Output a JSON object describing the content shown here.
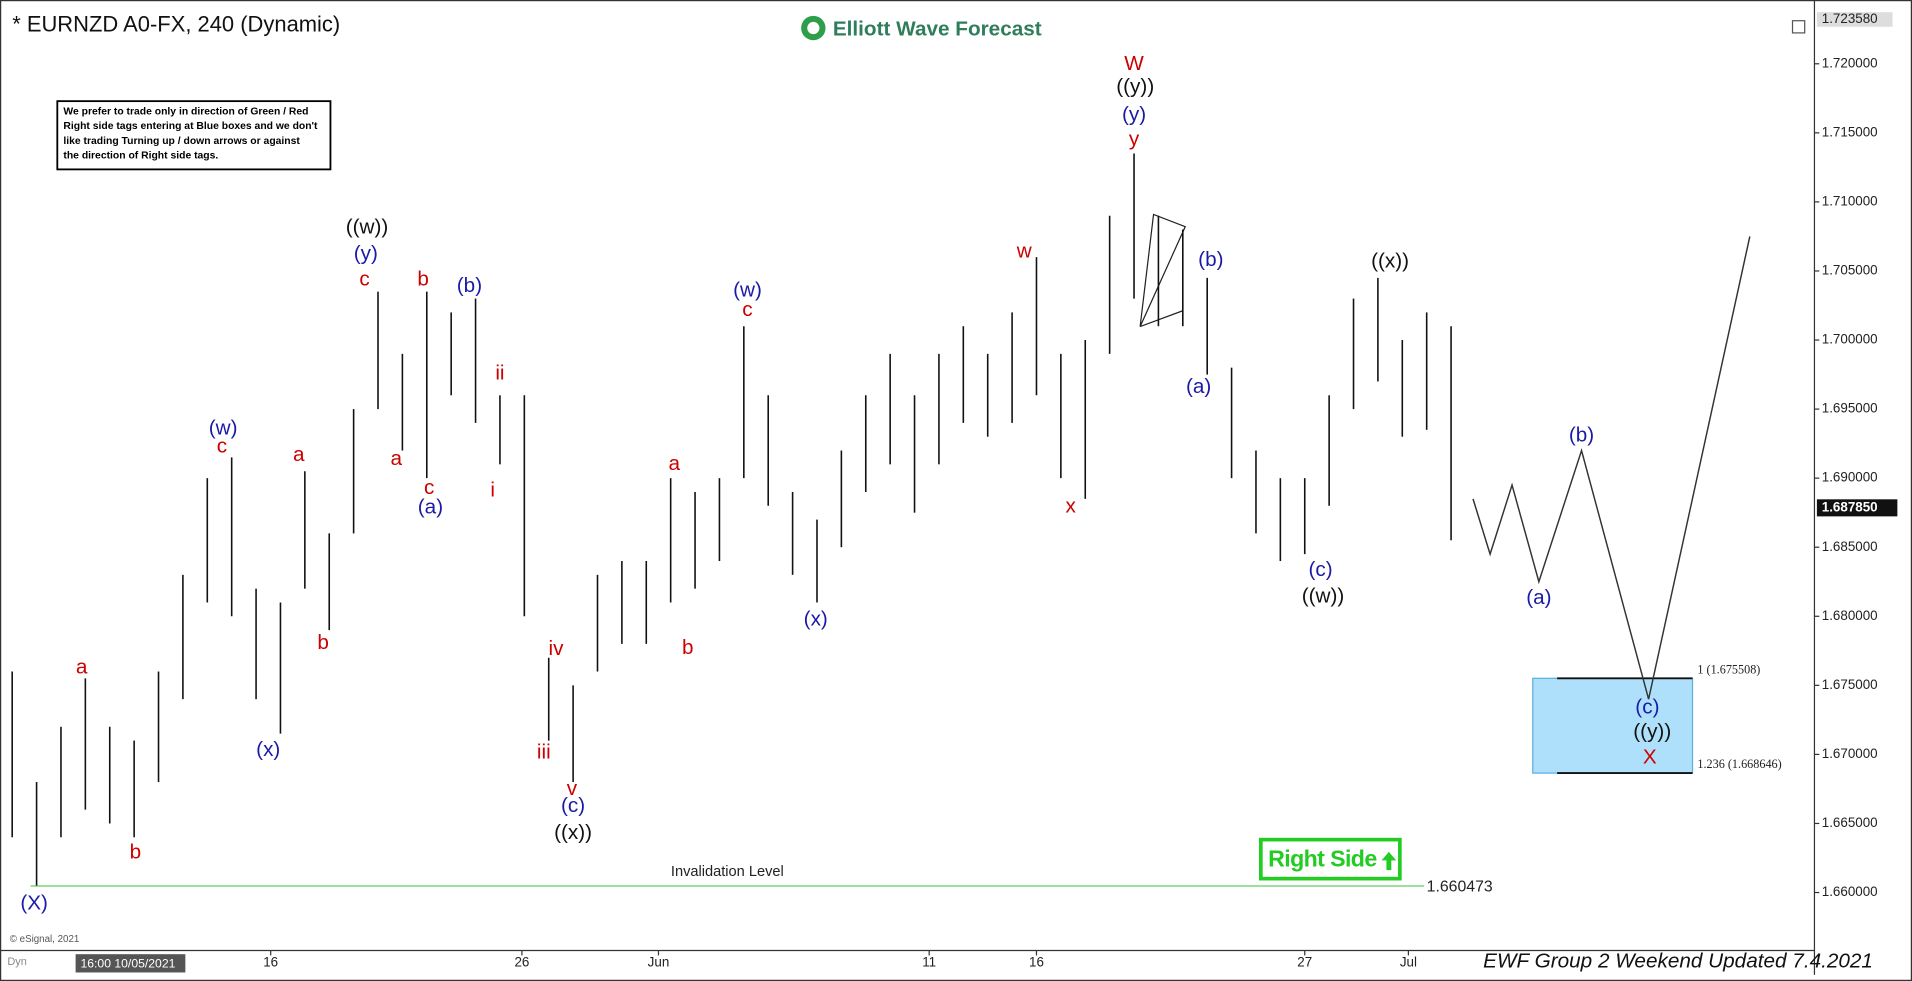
{
  "chart_data": {
    "type": "ohlc",
    "title": "* EURNZD A0-FX, 240 (Dynamic)",
    "logo": "Elliott Wave Forecast",
    "note": [
      "We prefer to trade only in direction of Green / Red",
      "Right side tags entering at Blue boxes and we don't",
      "like trading Turning up / down arrows or against",
      "the direction of Right side tags."
    ],
    "badge": "Right Side",
    "footer": "EWF Group 2 Weekend Updated 7.4.2021",
    "copyright": "© eSignal, 2021",
    "cursor_label": "16:00 10/05/2021",
    "corner_label": "Dyn",
    "color": "#111111",
    "x": [
      0,
      1,
      2,
      3,
      4,
      5,
      6,
      7,
      8,
      9,
      10,
      11,
      12,
      13,
      14,
      15,
      16,
      17,
      18,
      19,
      20,
      21,
      22,
      23,
      24,
      25,
      26,
      27,
      28,
      29,
      30,
      31,
      32,
      33,
      34,
      35,
      36,
      37,
      38,
      39,
      40,
      41,
      42,
      43,
      44,
      45,
      46,
      47,
      48,
      49,
      50,
      51,
      52,
      53,
      54,
      55,
      56,
      57,
      58,
      59
    ],
    "high": [
      1.676,
      1.668,
      1.672,
      1.6755,
      1.672,
      1.671,
      1.676,
      1.683,
      1.69,
      1.6915,
      1.682,
      1.681,
      1.6905,
      1.686,
      1.695,
      1.7035,
      1.699,
      1.7035,
      1.702,
      1.703,
      1.696,
      1.696,
      1.677,
      1.675,
      1.683,
      1.684,
      1.684,
      1.69,
      1.689,
      1.69,
      1.701,
      1.696,
      1.689,
      1.687,
      1.692,
      1.696,
      1.699,
      1.696,
      1.699,
      1.701,
      1.699,
      1.702,
      1.706,
      1.699,
      1.7,
      1.709,
      1.7135,
      1.709,
      1.708,
      1.7045,
      1.698,
      1.692,
      1.69,
      1.69,
      1.696,
      1.703,
      1.7045,
      1.7,
      1.702,
      1.701
    ],
    "low": [
      1.664,
      1.6605,
      1.664,
      1.666,
      1.665,
      1.664,
      1.668,
      1.674,
      1.681,
      1.68,
      1.674,
      1.6715,
      1.682,
      1.679,
      1.686,
      1.695,
      1.692,
      1.69,
      1.696,
      1.694,
      1.691,
      1.68,
      1.671,
      1.668,
      1.676,
      1.678,
      1.678,
      1.681,
      1.682,
      1.684,
      1.69,
      1.688,
      1.683,
      1.681,
      1.685,
      1.689,
      1.691,
      1.6875,
      1.691,
      1.694,
      1.693,
      1.694,
      1.696,
      1.69,
      1.6885,
      1.699,
      1.703,
      1.701,
      1.701,
      1.6975,
      1.69,
      1.686,
      1.684,
      1.6845,
      1.688,
      1.695,
      1.697,
      1.693,
      1.6935,
      1.6855
    ],
    "projection": {
      "x": [
        59.9,
        60.6,
        61.5,
        62.6,
        64.35,
        67.1,
        71.25
      ],
      "y": [
        1.6885,
        1.6845,
        1.6895,
        1.6825,
        1.692,
        1.674,
        1.7075
      ],
      "color": "#333333"
    },
    "zone": {
      "high": 1.675508,
      "low": 1.668646,
      "x_start": 62.35,
      "x_end": 68.9,
      "color": "#aee0fb",
      "labels": [
        "1 (1.675508)",
        "1.236 (1.668646)"
      ]
    },
    "invalidation": {
      "value": 1.660473,
      "text": "Invalidation Level",
      "x_start": 0.75,
      "x_end": 57.9,
      "color": "#7cd67c"
    },
    "last_price": {
      "value": 1.68785,
      "label": "1.687850"
    },
    "top_price": {
      "value": 1.72358,
      "label": "1.723580"
    },
    "xlim": [
      -0.5,
      73.9
    ],
    "ylim": [
      1.6558,
      1.724
    ],
    "xticks": [
      {
        "value": 10.6,
        "label": "16"
      },
      {
        "value": 20.9,
        "label": "26"
      },
      {
        "value": 26.5,
        "label": "Jun"
      },
      {
        "value": 37.6,
        "label": "11"
      },
      {
        "value": 42,
        "label": "16"
      },
      {
        "value": 53,
        "label": "27"
      },
      {
        "value": 57.25,
        "label": "Jul"
      }
    ],
    "yticks": [
      {
        "value": 1.66,
        "label": "1.660000"
      },
      {
        "value": 1.665,
        "label": "1.665000"
      },
      {
        "value": 1.67,
        "label": "1.670000"
      },
      {
        "value": 1.675,
        "label": "1.675000"
      },
      {
        "value": 1.68,
        "label": "1.680000"
      },
      {
        "value": 1.685,
        "label": "1.685000"
      },
      {
        "value": 1.69,
        "label": "1.690000"
      },
      {
        "value": 1.695,
        "label": "1.695000"
      },
      {
        "value": 1.7,
        "label": "1.700000"
      },
      {
        "value": 1.705,
        "label": "1.705000"
      },
      {
        "value": 1.71,
        "label": "1.710000"
      },
      {
        "value": 1.715,
        "label": "1.715000"
      },
      {
        "value": 1.72,
        "label": "1.720000"
      }
    ],
    "wave_labels": [
      {
        "text": "(X)",
        "color": "#1a1aa8"
      },
      {
        "text": "a",
        "color": "#cc0000"
      },
      {
        "text": "b",
        "color": "#cc0000"
      },
      {
        "text": "(w)",
        "color": "#1a1aa8"
      },
      {
        "text": "c",
        "color": "#cc0000"
      },
      {
        "text": "(x)",
        "color": "#1a1aa8"
      },
      {
        "text": "a",
        "color": "#cc0000"
      },
      {
        "text": "b",
        "color": "#cc0000"
      },
      {
        "text": "((w))",
        "color": "#111111"
      },
      {
        "text": "(y)",
        "color": "#1a1aa8"
      },
      {
        "text": "c",
        "color": "#cc0000"
      },
      {
        "text": "a",
        "color": "#cc0000"
      },
      {
        "text": "b",
        "color": "#cc0000"
      },
      {
        "text": "c",
        "color": "#cc0000"
      },
      {
        "text": "(a)",
        "color": "#1a1aa8"
      },
      {
        "text": "(b)",
        "color": "#1a1aa8"
      },
      {
        "text": "ii",
        "color": "#cc0000"
      },
      {
        "text": "i",
        "color": "#cc0000"
      },
      {
        "text": "iii",
        "color": "#cc0000"
      },
      {
        "text": "iv",
        "color": "#cc0000"
      },
      {
        "text": "v",
        "color": "#cc0000"
      },
      {
        "text": "(c)",
        "color": "#1a1aa8"
      },
      {
        "text": "((x))",
        "color": "#111111"
      },
      {
        "text": "a",
        "color": "#cc0000"
      },
      {
        "text": "b",
        "color": "#cc0000"
      },
      {
        "text": "(w)",
        "color": "#1a1aa8"
      },
      {
        "text": "c",
        "color": "#cc0000"
      },
      {
        "text": "(x)",
        "color": "#1a1aa8"
      },
      {
        "text": "w",
        "color": "#cc0000"
      },
      {
        "text": "x",
        "color": "#cc0000"
      },
      {
        "text": "W",
        "color": "#cc0000"
      },
      {
        "text": "((y))",
        "color": "#111111"
      },
      {
        "text": "(y)",
        "color": "#1a1aa8"
      },
      {
        "text": "y",
        "color": "#cc0000"
      },
      {
        "text": "(b)",
        "color": "#1a1aa8"
      },
      {
        "text": "(a)",
        "color": "#1a1aa8"
      },
      {
        "text": "((x))",
        "color": "#111111"
      },
      {
        "text": "(c)",
        "color": "#1a1aa8"
      },
      {
        "text": "((w))",
        "color": "#111111"
      },
      {
        "text": "(b)",
        "color": "#1a1aa8"
      },
      {
        "text": "(a)",
        "color": "#1a1aa8"
      },
      {
        "text": "(c)",
        "color": "#1a1aa8"
      },
      {
        "text": "((y))",
        "color": "#111111"
      },
      {
        "text": "X",
        "color": "#cc0000"
      }
    ]
  }
}
